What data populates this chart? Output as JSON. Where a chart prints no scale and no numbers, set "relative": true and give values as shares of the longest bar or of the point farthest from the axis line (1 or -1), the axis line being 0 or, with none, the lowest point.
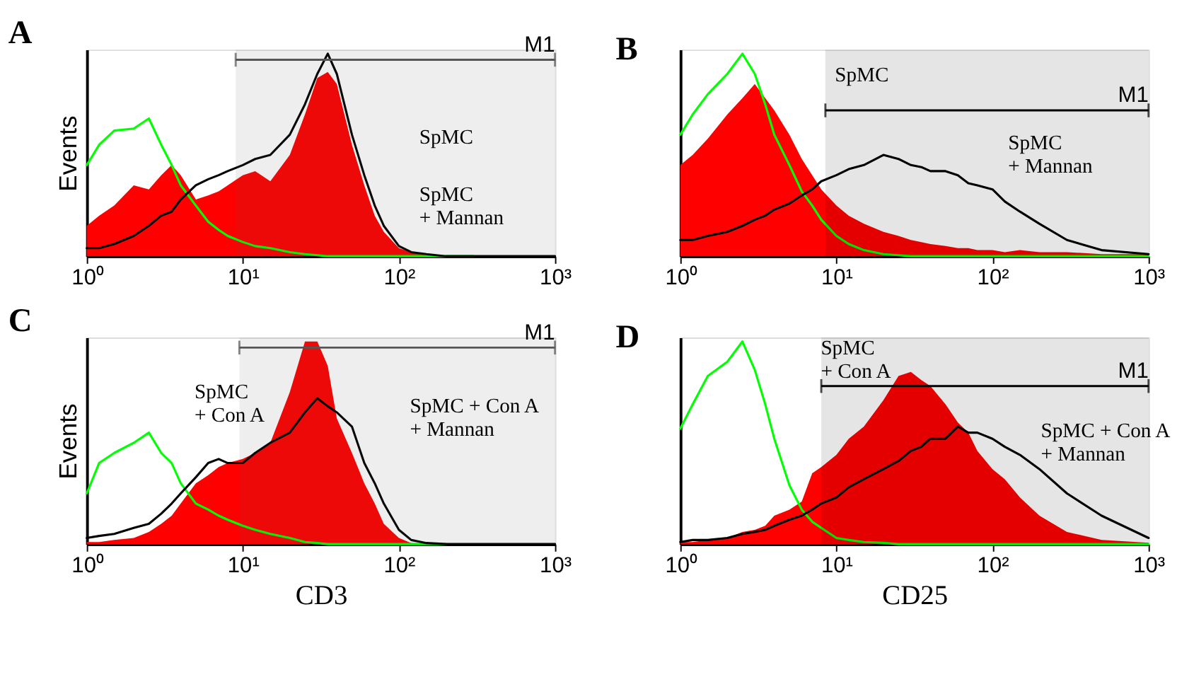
{
  "chart_data": [
    {
      "type": "line",
      "title": "A",
      "ylabel": "Events",
      "relative": true,
      "log": "x",
      "xlim": [
        1,
        1000
      ],
      "xticks": [
        {
          "value": 1,
          "label": "10⁰"
        },
        {
          "value": 10,
          "label": "10¹"
        },
        {
          "value": 100,
          "label": "10²"
        },
        {
          "value": 1000,
          "label": "10³"
        }
      ],
      "x": [
        1,
        1.2,
        1.5,
        2,
        2.5,
        3,
        3.5,
        4,
        5,
        6,
        7,
        8,
        10,
        12,
        15,
        20,
        25,
        30,
        35,
        40,
        50,
        60,
        70,
        80,
        100,
        120,
        150,
        200,
        300,
        500,
        1000
      ],
      "series": [
        {
          "type": "area",
          "color": "#ff0000",
          "values": [
            0.15,
            0.2,
            0.25,
            0.35,
            0.33,
            0.4,
            0.45,
            0.4,
            0.28,
            0.3,
            0.32,
            0.35,
            0.4,
            0.42,
            0.37,
            0.5,
            0.7,
            0.88,
            0.91,
            0.85,
            0.55,
            0.35,
            0.2,
            0.12,
            0.04,
            0.02,
            0.005,
            0,
            0,
            0,
            0
          ]
        },
        {
          "color": "#00ff00",
          "values": [
            0.45,
            0.55,
            0.62,
            0.63,
            0.68,
            0.55,
            0.45,
            0.35,
            0.25,
            0.17,
            0.13,
            0.1,
            0.07,
            0.05,
            0.04,
            0.02,
            0.01,
            0.005,
            0,
            0,
            0,
            0,
            0,
            0,
            0,
            0,
            0,
            0,
            0,
            null,
            null
          ]
        },
        {
          "color": "#000000",
          "values": [
            0.04,
            0.04,
            0.06,
            0.1,
            0.15,
            0.2,
            0.22,
            0.28,
            0.35,
            0.38,
            0.4,
            0.42,
            0.45,
            0.48,
            0.5,
            0.6,
            0.75,
            0.9,
            1.0,
            0.9,
            0.6,
            0.4,
            0.25,
            0.15,
            0.05,
            0.02,
            0.01,
            0,
            0,
            0,
            0
          ]
        }
      ],
      "bands": [
        {
          "axis": "x",
          "from": 9,
          "to": 1000,
          "label": "M1",
          "color": "#555555"
        }
      ],
      "annotations": [
        "SpMC",
        "SpMC\n+ Mannan"
      ]
    },
    {
      "type": "line",
      "title": "B",
      "relative": true,
      "log": "x",
      "xlim": [
        1,
        1000
      ],
      "xticks": [
        {
          "value": 1,
          "label": "10⁰"
        },
        {
          "value": 10,
          "label": "10¹"
        },
        {
          "value": 100,
          "label": "10²"
        },
        {
          "value": 1000,
          "label": "10³"
        }
      ],
      "x": [
        1,
        1.2,
        1.5,
        2,
        2.5,
        3,
        3.5,
        4,
        5,
        6,
        7,
        8,
        10,
        12,
        15,
        20,
        25,
        30,
        35,
        40,
        50,
        60,
        70,
        80,
        100,
        120,
        150,
        200,
        300,
        500,
        1000
      ],
      "series": [
        {
          "type": "area",
          "color": "#ff0000",
          "values": [
            0.45,
            0.5,
            0.58,
            0.7,
            0.78,
            0.85,
            0.78,
            0.72,
            0.6,
            0.48,
            0.4,
            0.33,
            0.25,
            0.2,
            0.16,
            0.12,
            0.1,
            0.08,
            0.07,
            0.06,
            0.05,
            0.04,
            0.04,
            0.03,
            0.03,
            0.02,
            0.03,
            0.02,
            0.02,
            0.01,
            0.01
          ]
        },
        {
          "color": "#00ff00",
          "values": [
            0.6,
            0.7,
            0.8,
            0.9,
            1.0,
            0.9,
            0.75,
            0.6,
            0.45,
            0.32,
            0.25,
            0.18,
            0.1,
            0.06,
            0.03,
            0.01,
            0.005,
            0,
            0,
            0,
            0,
            0,
            0,
            0,
            0,
            0,
            0,
            0,
            0,
            0,
            0
          ]
        },
        {
          "color": "#000000",
          "values": [
            0.08,
            0.08,
            0.1,
            0.12,
            0.15,
            0.18,
            0.2,
            0.23,
            0.26,
            0.3,
            0.33,
            0.37,
            0.4,
            0.43,
            0.45,
            0.5,
            0.48,
            0.45,
            0.44,
            0.42,
            0.42,
            0.4,
            0.36,
            0.35,
            0.33,
            0.27,
            0.22,
            0.16,
            0.08,
            0.03,
            0.01
          ]
        }
      ],
      "bands": [
        {
          "axis": "x",
          "from": 8.5,
          "to": 1000,
          "label": "M1",
          "color": "#000000"
        }
      ],
      "annotations": [
        "SpMC",
        "SpMC\n+ Mannan"
      ]
    },
    {
      "type": "line",
      "title": "C",
      "xlabel": "CD3",
      "ylabel": "Events",
      "relative": true,
      "log": "x",
      "xlim": [
        1,
        1000
      ],
      "xticks": [
        {
          "value": 1,
          "label": "10⁰"
        },
        {
          "value": 10,
          "label": "10¹"
        },
        {
          "value": 100,
          "label": "10²"
        },
        {
          "value": 1000,
          "label": "10³"
        }
      ],
      "x": [
        1,
        1.2,
        1.5,
        2,
        2.5,
        3,
        3.5,
        4,
        5,
        6,
        7,
        8,
        10,
        12,
        15,
        20,
        25,
        30,
        35,
        40,
        50,
        60,
        70,
        80,
        100,
        120,
        150,
        200,
        300,
        500,
        1000
      ],
      "series": [
        {
          "type": "area",
          "color": "#ff0000",
          "values": [
            0.01,
            0.01,
            0.02,
            0.03,
            0.06,
            0.1,
            0.14,
            0.2,
            0.3,
            0.34,
            0.38,
            0.4,
            0.42,
            0.45,
            0.5,
            0.75,
            1.0,
            1.0,
            0.88,
            0.62,
            0.45,
            0.3,
            0.2,
            0.1,
            0.03,
            0.005,
            0,
            0,
            0,
            0,
            0
          ]
        },
        {
          "color": "#00ff00",
          "values": [
            0.25,
            0.4,
            0.45,
            0.5,
            0.55,
            0.45,
            0.4,
            0.3,
            0.2,
            0.17,
            0.14,
            0.12,
            0.09,
            0.07,
            0.05,
            0.03,
            0.01,
            0.005,
            0,
            0,
            0,
            0,
            0,
            0,
            0,
            0,
            0,
            0,
            null,
            null,
            null
          ]
        },
        {
          "color": "#000000",
          "values": [
            0.03,
            0.04,
            0.05,
            0.08,
            0.1,
            0.15,
            0.2,
            0.25,
            0.33,
            0.4,
            0.42,
            0.4,
            0.4,
            0.45,
            0.5,
            0.55,
            0.65,
            0.72,
            0.68,
            0.65,
            0.58,
            0.4,
            0.3,
            0.2,
            0.07,
            0.02,
            0.005,
            0,
            0,
            0,
            0
          ]
        }
      ],
      "bands": [
        {
          "axis": "x",
          "from": 9.5,
          "to": 1000,
          "label": "M1",
          "color": "#555555"
        }
      ],
      "annotations": [
        "SpMC\n+ Con A",
        "SpMC + Con A\n+ Mannan"
      ]
    },
    {
      "type": "line",
      "title": "D",
      "xlabel": "CD25",
      "relative": true,
      "log": "x",
      "xlim": [
        1,
        1000
      ],
      "xticks": [
        {
          "value": 1,
          "label": "10⁰"
        },
        {
          "value": 10,
          "label": "10¹"
        },
        {
          "value": 100,
          "label": "10²"
        },
        {
          "value": 1000,
          "label": "10³"
        }
      ],
      "x": [
        1,
        1.2,
        1.5,
        2,
        2.5,
        3,
        3.5,
        4,
        5,
        6,
        7,
        8,
        10,
        12,
        15,
        20,
        25,
        30,
        35,
        40,
        50,
        60,
        70,
        80,
        100,
        120,
        150,
        200,
        300,
        500,
        1000
      ],
      "series": [
        {
          "type": "area",
          "color": "#ff0000",
          "values": [
            0.01,
            0.01,
            0.02,
            0.03,
            0.06,
            0.07,
            0.09,
            0.14,
            0.17,
            0.21,
            0.35,
            0.38,
            0.44,
            0.52,
            0.58,
            0.71,
            0.83,
            0.85,
            0.81,
            0.78,
            0.69,
            0.6,
            0.55,
            0.46,
            0.37,
            0.32,
            0.23,
            0.14,
            0.06,
            0.02,
            0.006
          ]
        },
        {
          "color": "#00ff00",
          "values": [
            0.57,
            0.69,
            0.83,
            0.9,
            1.0,
            0.86,
            0.69,
            0.52,
            0.29,
            0.17,
            0.11,
            0.08,
            0.03,
            0.02,
            0.01,
            0.006,
            0,
            0,
            0,
            0,
            0,
            0,
            0,
            0,
            0,
            0,
            0,
            0,
            0,
            0,
            0
          ]
        },
        {
          "color": "#000000",
          "values": [
            0.01,
            0.02,
            0.02,
            0.03,
            0.05,
            0.06,
            0.07,
            0.09,
            0.12,
            0.14,
            0.17,
            0.2,
            0.23,
            0.28,
            0.32,
            0.37,
            0.41,
            0.46,
            0.48,
            0.52,
            0.52,
            0.58,
            0.55,
            0.55,
            0.52,
            0.48,
            0.44,
            0.37,
            0.25,
            0.14,
            0.03
          ]
        }
      ],
      "bands": [
        {
          "axis": "x",
          "from": 8,
          "to": 1000,
          "label": "M1",
          "color": "#000000"
        }
      ],
      "annotations": [
        "SpMC\n+ Con A",
        "SpMC + Con A\n+ Mannan"
      ]
    }
  ]
}
